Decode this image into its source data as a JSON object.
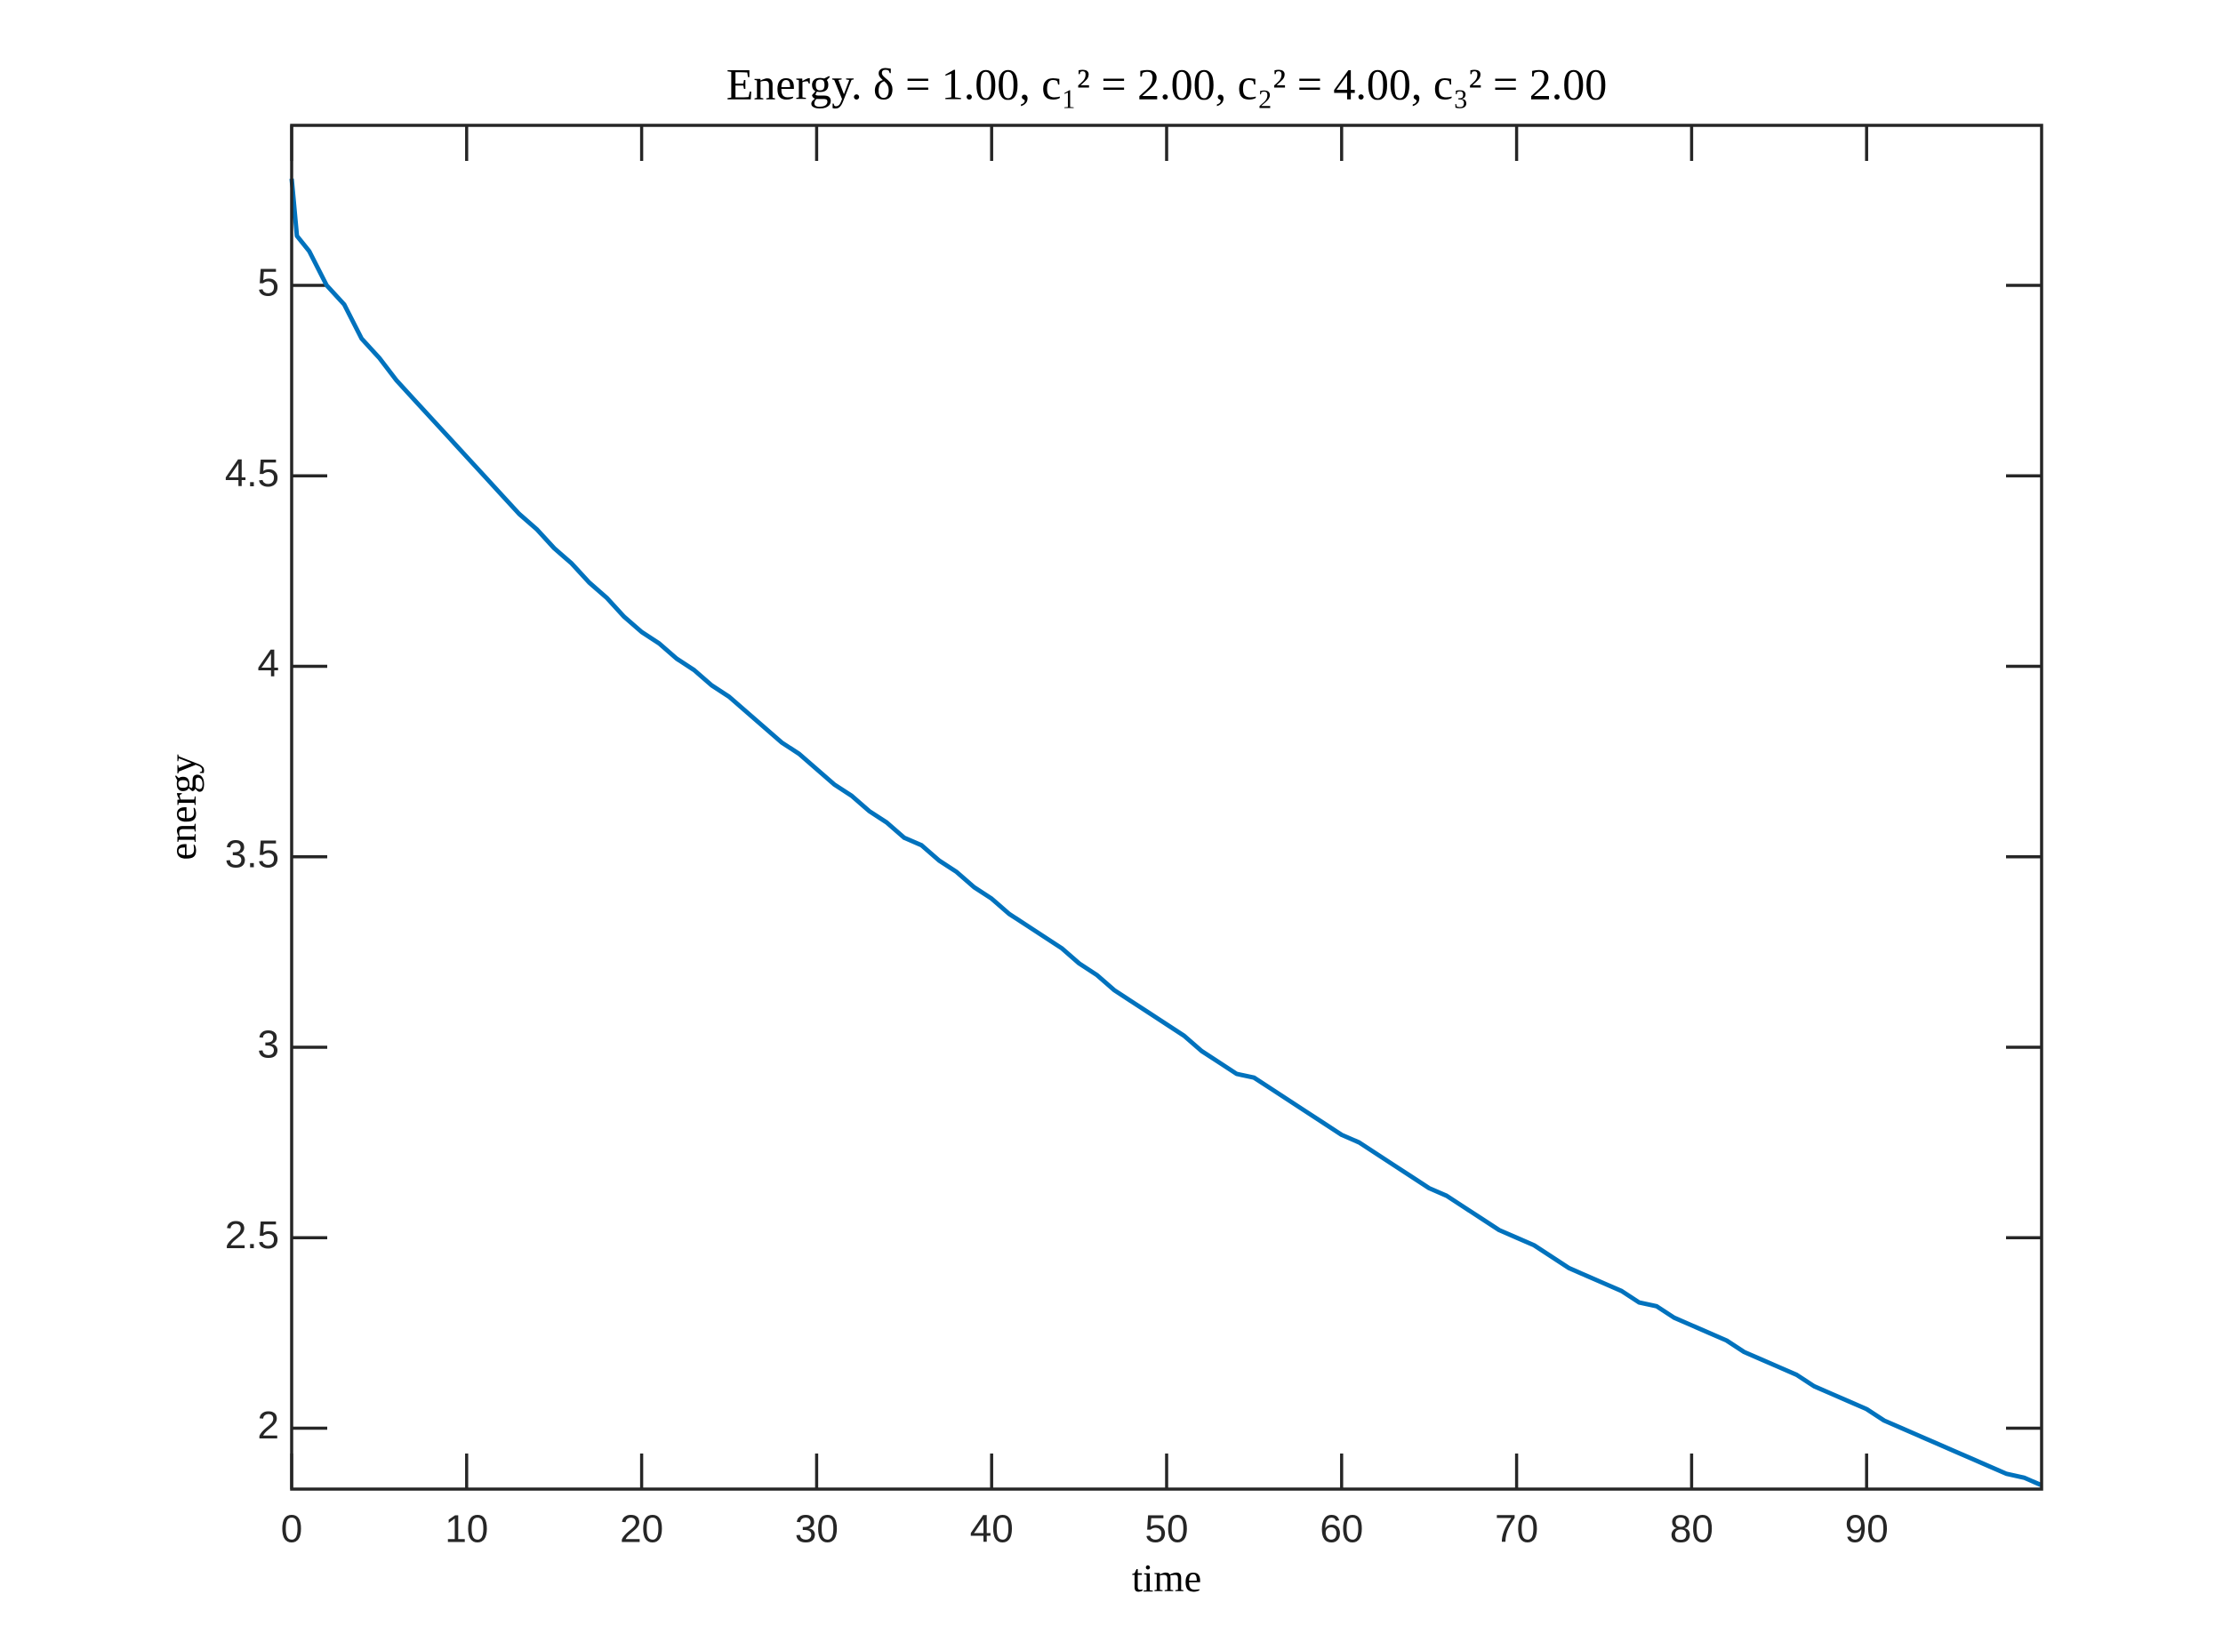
{
  "chart_data": {
    "type": "line",
    "title": "Energy.  δ = 1.00,  c₁² = 2.00,  c₂² = 4.00,  c₃² = 2.00",
    "x_label": "time",
    "y_label": "energy",
    "x": [
      0,
      0.3,
      1,
      2,
      3,
      4,
      5,
      6,
      7,
      8,
      9,
      10,
      11,
      12,
      13,
      14,
      15,
      16,
      17,
      18,
      19,
      20,
      21,
      22,
      23,
      24,
      25,
      26,
      27,
      28,
      29,
      30,
      31,
      32,
      33,
      34,
      35,
      36,
      37,
      38,
      39,
      40,
      41,
      42,
      43,
      44,
      45,
      46,
      47,
      48,
      49,
      50,
      51,
      52,
      53,
      54,
      55,
      56,
      57,
      58,
      59,
      60,
      61,
      62,
      63,
      64,
      65,
      66,
      67,
      68,
      69,
      70,
      71,
      72,
      73,
      74,
      75,
      76,
      77,
      78,
      79,
      80,
      81,
      82,
      83,
      84,
      85,
      86,
      87,
      88,
      89,
      90,
      91,
      92,
      93,
      94,
      95,
      96,
      97,
      98,
      99,
      100
    ],
    "series": [
      {
        "name": "energy",
        "color": "#0072bd",
        "values": [
          5.28,
          5.13,
          5.09,
          5.0,
          4.95,
          4.86,
          4.81,
          4.75,
          4.7,
          4.65,
          4.6,
          4.55,
          4.5,
          4.45,
          4.4,
          4.36,
          4.31,
          4.27,
          4.22,
          4.18,
          4.13,
          4.09,
          4.06,
          4.02,
          3.99,
          3.95,
          3.92,
          3.88,
          3.84,
          3.8,
          3.77,
          3.73,
          3.69,
          3.66,
          3.62,
          3.59,
          3.55,
          3.53,
          3.49,
          3.46,
          3.42,
          3.39,
          3.35,
          3.32,
          3.29,
          3.26,
          3.22,
          3.19,
          3.15,
          3.12,
          3.09,
          3.06,
          3.03,
          2.99,
          2.96,
          2.93,
          2.92,
          2.89,
          2.86,
          2.83,
          2.8,
          2.77,
          2.75,
          2.72,
          2.69,
          2.66,
          2.63,
          2.61,
          2.58,
          2.55,
          2.52,
          2.5,
          2.48,
          2.45,
          2.42,
          2.4,
          2.38,
          2.36,
          2.33,
          2.32,
          2.29,
          2.27,
          2.25,
          2.23,
          2.2,
          2.18,
          2.16,
          2.14,
          2.11,
          2.09,
          2.07,
          2.05,
          2.02,
          2.0,
          1.98,
          1.96,
          1.94,
          1.92,
          1.9,
          1.88,
          1.87,
          1.85
        ]
      }
    ],
    "xlim": [
      0,
      100
    ],
    "ylim": [
      1.84,
      5.42
    ],
    "xticks": [
      0,
      10,
      20,
      30,
      40,
      50,
      60,
      70,
      80,
      90
    ],
    "yticks": [
      2,
      2.5,
      3,
      3.5,
      4,
      4.5,
      5
    ],
    "grid": false
  }
}
